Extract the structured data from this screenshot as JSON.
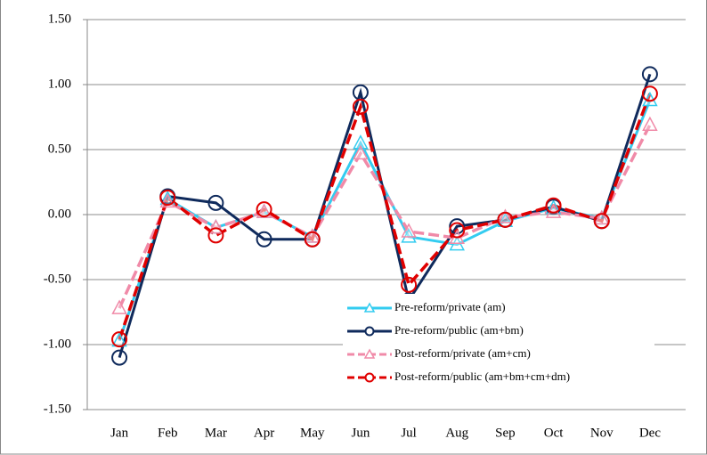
{
  "chart_data": {
    "type": "line",
    "categories": [
      "Jan",
      "Feb",
      "Mar",
      "Apr",
      "May",
      "Jun",
      "Jul",
      "Aug",
      "Sep",
      "Oct",
      "Nov",
      "Dec"
    ],
    "ylim": [
      -1.5,
      1.5
    ],
    "yticks": [
      {
        "value": -1.5,
        "label": "-1.50"
      },
      {
        "value": -1,
        "label": "-1.00"
      },
      {
        "value": -0.5,
        "label": "-0.50"
      },
      {
        "value": 0,
        "label": "0.00"
      },
      {
        "value": 0.5,
        "label": "0.50"
      },
      {
        "value": 1,
        "label": "1.00"
      },
      {
        "value": 1.5,
        "label": "1.50"
      }
    ],
    "grid": true,
    "legend": "lower-right",
    "series": [
      {
        "name": "Pre-reform/private (am)",
        "color": "#33ccf0",
        "marker": "triangle",
        "dashed": false,
        "values": [
          -0.97,
          0.12,
          -0.1,
          0.02,
          -0.17,
          0.55,
          -0.17,
          -0.23,
          -0.05,
          0.05,
          -0.03,
          0.88
        ]
      },
      {
        "name": "Pre-reform/public (am+bm)",
        "color": "#0f2a5c",
        "marker": "circle",
        "dashed": false,
        "values": [
          -1.1,
          0.14,
          0.09,
          -0.19,
          -0.19,
          0.94,
          -0.66,
          -0.09,
          -0.04,
          0.06,
          -0.05,
          1.08
        ]
      },
      {
        "name": "Post-reform/private (am+cm)",
        "color": "#f08aa8",
        "marker": "triangle",
        "dashed": true,
        "values": [
          -0.72,
          0.1,
          -0.1,
          0.02,
          -0.17,
          0.47,
          -0.13,
          -0.18,
          -0.02,
          0.02,
          -0.03,
          0.69
        ]
      },
      {
        "name": "Post-reform/public (am+bm+cm+dm)",
        "color": "#e00000",
        "marker": "circle",
        "dashed": true,
        "values": [
          -0.96,
          0.13,
          -0.16,
          0.04,
          -0.19,
          0.83,
          -0.54,
          -0.12,
          -0.04,
          0.07,
          -0.05,
          0.93
        ]
      }
    ]
  }
}
